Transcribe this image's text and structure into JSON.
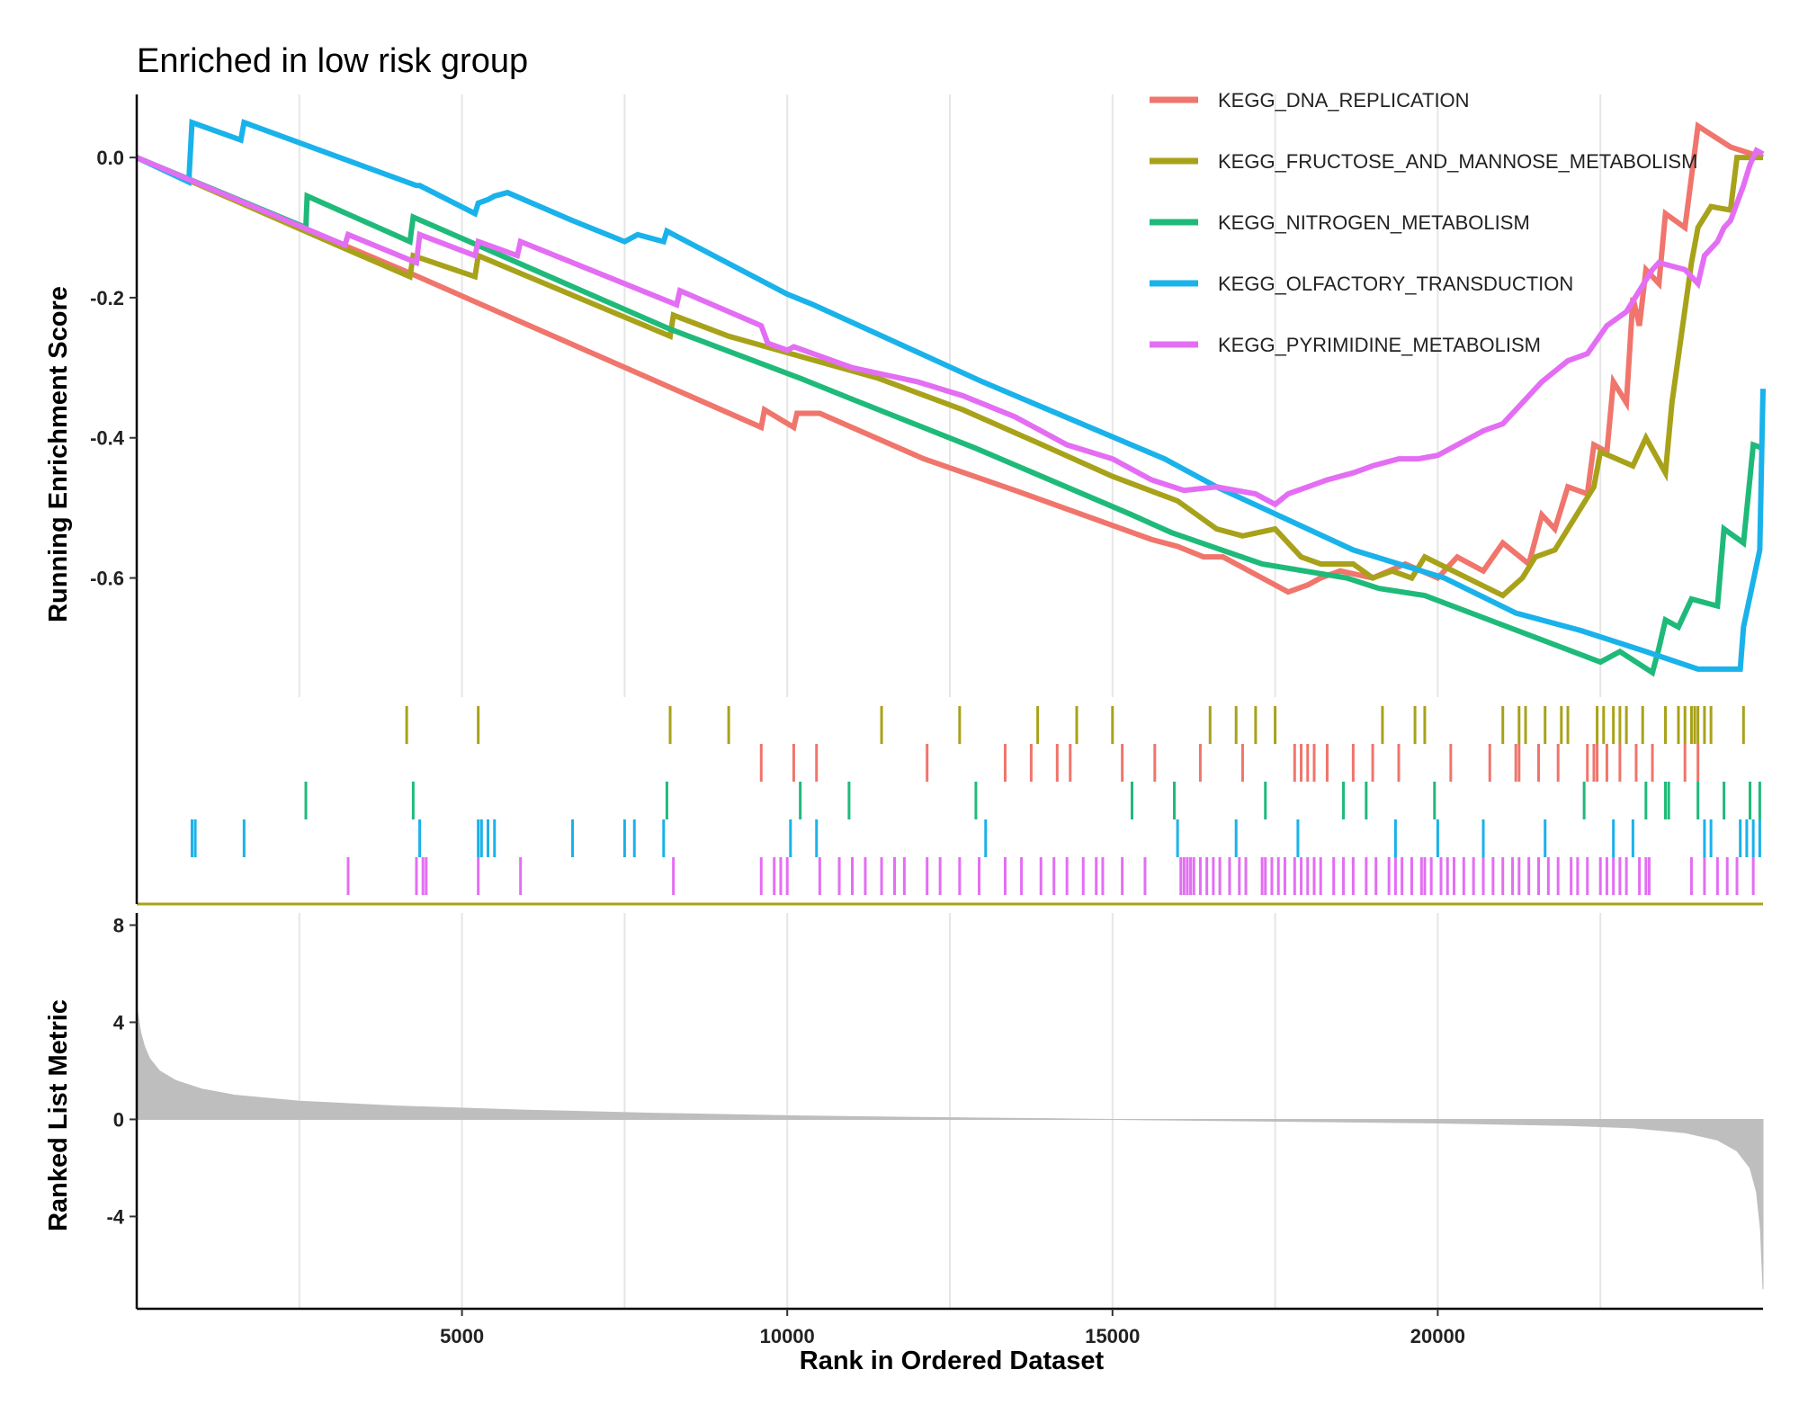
{
  "chart_data": {
    "type": "line",
    "title": "Enriched in low risk group",
    "xlabel": "Rank in Ordered Dataset",
    "x_ticks": [
      5000,
      10000,
      15000,
      20000
    ],
    "xlim": [
      0,
      25000
    ],
    "grid": true,
    "legend_position": "top-right",
    "panels": {
      "es": {
        "ylabel": "Running Enrichment Score",
        "ylim": [
          -0.77,
          0.09
        ],
        "y_ticks": [
          0.0,
          -0.2,
          -0.4,
          -0.6
        ],
        "y_tick_labels": [
          "0.0",
          "-0.2",
          "-0.4",
          "-0.6"
        ]
      },
      "metric": {
        "ylabel": "Ranked List Metric",
        "ylim": [
          -7.8,
          8.5
        ],
        "y_ticks": [
          8,
          4,
          0,
          -4
        ],
        "y_tick_labels": [
          "8",
          "4",
          "0",
          "-4"
        ],
        "fill_color": "#bebebe"
      }
    },
    "series": [
      {
        "name": "KEGG_DNA_REPLICATION",
        "color": "#f0756c",
        "points": [
          [
            0,
            0.0
          ],
          [
            4200,
            -0.165
          ],
          [
            9600,
            -0.385
          ],
          [
            9650,
            -0.36
          ],
          [
            10100,
            -0.385
          ],
          [
            10150,
            -0.365
          ],
          [
            10500,
            -0.365
          ],
          [
            12100,
            -0.43
          ],
          [
            13500,
            -0.475
          ],
          [
            15600,
            -0.545
          ],
          [
            16000,
            -0.555
          ],
          [
            16400,
            -0.57
          ],
          [
            16700,
            -0.57
          ],
          [
            17700,
            -0.62
          ],
          [
            18000,
            -0.61
          ],
          [
            18200,
            -0.6
          ],
          [
            18500,
            -0.59
          ],
          [
            19000,
            -0.6
          ],
          [
            19500,
            -0.58
          ],
          [
            20000,
            -0.6
          ],
          [
            20300,
            -0.57
          ],
          [
            20700,
            -0.59
          ],
          [
            21000,
            -0.55
          ],
          [
            21400,
            -0.58
          ],
          [
            21600,
            -0.51
          ],
          [
            21800,
            -0.53
          ],
          [
            22000,
            -0.47
          ],
          [
            22300,
            -0.48
          ],
          [
            22400,
            -0.41
          ],
          [
            22600,
            -0.42
          ],
          [
            22700,
            -0.32
          ],
          [
            22900,
            -0.35
          ],
          [
            23000,
            -0.2
          ],
          [
            23100,
            -0.24
          ],
          [
            23200,
            -0.16
          ],
          [
            23400,
            -0.18
          ],
          [
            23500,
            -0.08
          ],
          [
            23800,
            -0.1
          ],
          [
            24000,
            0.045
          ],
          [
            24500,
            0.015
          ],
          [
            25000,
            0.0
          ]
        ]
      },
      {
        "name": "KEGG_FRUCTOSE_AND_MANNOSE_METABOLISM",
        "color": "#a8a21a",
        "points": [
          [
            0,
            0.0
          ],
          [
            3200,
            -0.13
          ],
          [
            4200,
            -0.17
          ],
          [
            4250,
            -0.14
          ],
          [
            5200,
            -0.17
          ],
          [
            5250,
            -0.14
          ],
          [
            8200,
            -0.255
          ],
          [
            8250,
            -0.225
          ],
          [
            9100,
            -0.255
          ],
          [
            11400,
            -0.315
          ],
          [
            12700,
            -0.36
          ],
          [
            13800,
            -0.405
          ],
          [
            15000,
            -0.455
          ],
          [
            16000,
            -0.49
          ],
          [
            16600,
            -0.53
          ],
          [
            17000,
            -0.54
          ],
          [
            17500,
            -0.53
          ],
          [
            17900,
            -0.57
          ],
          [
            18200,
            -0.58
          ],
          [
            18700,
            -0.58
          ],
          [
            19000,
            -0.6
          ],
          [
            19300,
            -0.59
          ],
          [
            19600,
            -0.6
          ],
          [
            19800,
            -0.57
          ],
          [
            21000,
            -0.625
          ],
          [
            21300,
            -0.6
          ],
          [
            21500,
            -0.57
          ],
          [
            21800,
            -0.56
          ],
          [
            22000,
            -0.53
          ],
          [
            22200,
            -0.5
          ],
          [
            22400,
            -0.47
          ],
          [
            22500,
            -0.42
          ],
          [
            23000,
            -0.44
          ],
          [
            23200,
            -0.4
          ],
          [
            23500,
            -0.45
          ],
          [
            23600,
            -0.35
          ],
          [
            23750,
            -0.25
          ],
          [
            23900,
            -0.15
          ],
          [
            24000,
            -0.1
          ],
          [
            24200,
            -0.07
          ],
          [
            24500,
            -0.075
          ],
          [
            24600,
            0.0
          ],
          [
            25000,
            0.0
          ]
        ]
      },
      {
        "name": "KEGG_NITROGEN_METABOLISM",
        "color": "#1fba7a",
        "points": [
          [
            0,
            0.0
          ],
          [
            2600,
            -0.1
          ],
          [
            2620,
            -0.055
          ],
          [
            4200,
            -0.12
          ],
          [
            4250,
            -0.085
          ],
          [
            8200,
            -0.245
          ],
          [
            10200,
            -0.315
          ],
          [
            11000,
            -0.345
          ],
          [
            12900,
            -0.415
          ],
          [
            15300,
            -0.51
          ],
          [
            15900,
            -0.535
          ],
          [
            17300,
            -0.58
          ],
          [
            18600,
            -0.6
          ],
          [
            19100,
            -0.615
          ],
          [
            19800,
            -0.625
          ],
          [
            22500,
            -0.72
          ],
          [
            22800,
            -0.705
          ],
          [
            23300,
            -0.735
          ],
          [
            23400,
            -0.7
          ],
          [
            23500,
            -0.66
          ],
          [
            23700,
            -0.67
          ],
          [
            23900,
            -0.63
          ],
          [
            24300,
            -0.64
          ],
          [
            24400,
            -0.53
          ],
          [
            24700,
            -0.55
          ],
          [
            24850,
            -0.41
          ],
          [
            25000,
            -0.415
          ]
        ]
      },
      {
        "name": "KEGG_OLFACTORY_TRANSDUCTION",
        "color": "#1ab2ea",
        "points": [
          [
            0,
            0.0
          ],
          [
            800,
            -0.035
          ],
          [
            850,
            0.05
          ],
          [
            1600,
            0.025
          ],
          [
            1650,
            0.05
          ],
          [
            4300,
            -0.04
          ],
          [
            4350,
            -0.04
          ],
          [
            5200,
            -0.08
          ],
          [
            5250,
            -0.065
          ],
          [
            5400,
            -0.06
          ],
          [
            5500,
            -0.055
          ],
          [
            5700,
            -0.05
          ],
          [
            6700,
            -0.09
          ],
          [
            7500,
            -0.12
          ],
          [
            7700,
            -0.11
          ],
          [
            8100,
            -0.12
          ],
          [
            8150,
            -0.105
          ],
          [
            10000,
            -0.195
          ],
          [
            10400,
            -0.21
          ],
          [
            13000,
            -0.32
          ],
          [
            15800,
            -0.43
          ],
          [
            16600,
            -0.47
          ],
          [
            18700,
            -0.56
          ],
          [
            20100,
            -0.6
          ],
          [
            21200,
            -0.65
          ],
          [
            22200,
            -0.675
          ],
          [
            23200,
            -0.705
          ],
          [
            24000,
            -0.73
          ],
          [
            24200,
            -0.73
          ],
          [
            24650,
            -0.73
          ],
          [
            24700,
            -0.67
          ],
          [
            24950,
            -0.56
          ],
          [
            25000,
            -0.33
          ]
        ]
      },
      {
        "name": "KEGG_PYRIMIDINE_METABOLISM",
        "color": "#e36ef3",
        "points": [
          [
            0,
            0.0
          ],
          [
            3200,
            -0.125
          ],
          [
            3250,
            -0.11
          ],
          [
            4300,
            -0.15
          ],
          [
            4350,
            -0.11
          ],
          [
            5200,
            -0.14
          ],
          [
            5250,
            -0.12
          ],
          [
            5850,
            -0.14
          ],
          [
            5900,
            -0.12
          ],
          [
            8300,
            -0.21
          ],
          [
            8350,
            -0.19
          ],
          [
            9600,
            -0.24
          ],
          [
            9700,
            -0.265
          ],
          [
            10000,
            -0.275
          ],
          [
            10100,
            -0.27
          ],
          [
            11000,
            -0.3
          ],
          [
            11500,
            -0.31
          ],
          [
            12000,
            -0.32
          ],
          [
            12700,
            -0.34
          ],
          [
            13500,
            -0.37
          ],
          [
            14300,
            -0.41
          ],
          [
            15000,
            -0.43
          ],
          [
            15600,
            -0.46
          ],
          [
            16100,
            -0.475
          ],
          [
            16600,
            -0.47
          ],
          [
            17200,
            -0.48
          ],
          [
            17500,
            -0.495
          ],
          [
            17700,
            -0.48
          ],
          [
            18000,
            -0.47
          ],
          [
            18300,
            -0.46
          ],
          [
            18700,
            -0.45
          ],
          [
            19000,
            -0.44
          ],
          [
            19400,
            -0.43
          ],
          [
            19700,
            -0.43
          ],
          [
            20000,
            -0.425
          ],
          [
            20300,
            -0.41
          ],
          [
            20700,
            -0.39
          ],
          [
            21000,
            -0.38
          ],
          [
            21300,
            -0.35
          ],
          [
            21600,
            -0.32
          ],
          [
            22000,
            -0.29
          ],
          [
            22300,
            -0.28
          ],
          [
            22600,
            -0.24
          ],
          [
            22900,
            -0.22
          ],
          [
            23100,
            -0.19
          ],
          [
            23300,
            -0.16
          ],
          [
            23400,
            -0.15
          ],
          [
            23800,
            -0.16
          ],
          [
            24000,
            -0.18
          ],
          [
            24100,
            -0.14
          ],
          [
            24300,
            -0.12
          ],
          [
            24400,
            -0.1
          ],
          [
            24500,
            -0.09
          ],
          [
            24700,
            -0.04
          ],
          [
            24800,
            -0.01
          ],
          [
            24900,
            0.01
          ],
          [
            25000,
            0.005
          ]
        ]
      }
    ],
    "hits": [
      {
        "series": "KEGG_FRUCTOSE_AND_MANNOSE_METABOLISM",
        "row": 0,
        "positions": [
          4150,
          5250,
          8200,
          9100,
          11450,
          12650,
          13850,
          14450,
          15000,
          16500,
          16900,
          17200,
          17500,
          19150,
          19650,
          19800,
          21000,
          21250,
          21350,
          21650,
          21900,
          22000,
          22450,
          22550,
          22700,
          22800,
          22900,
          23150,
          23500,
          23700,
          23800,
          23900,
          23950,
          24000,
          24100,
          24200,
          24700
        ]
      },
      {
        "series": "KEGG_DNA_REPLICATION",
        "row": 1,
        "positions": [
          9600,
          10100,
          10450,
          12150,
          13350,
          13750,
          14150,
          14350,
          15150,
          15650,
          16350,
          17000,
          17800,
          17900,
          18000,
          18100,
          18300,
          18700,
          19000,
          19400,
          20200,
          20800,
          21200,
          21250,
          21550,
          21850,
          22300,
          22400,
          22450,
          22600,
          22800,
          23050,
          23300,
          23800,
          24000
        ]
      },
      {
        "series": "KEGG_NITROGEN_METABOLISM",
        "row": 2,
        "positions": [
          2600,
          4250,
          8150,
          10200,
          10950,
          12900,
          15300,
          15950,
          17350,
          18550,
          18900,
          19950,
          22250,
          23200,
          23500,
          23550,
          24000,
          24400,
          24800,
          24950
        ]
      },
      {
        "series": "KEGG_OLFACTORY_TRANSDUCTION",
        "row": 3,
        "positions": [
          850,
          900,
          1650,
          4350,
          5250,
          5300,
          5400,
          5500,
          6700,
          7500,
          7650,
          8100,
          10050,
          10450,
          13050,
          16000,
          16900,
          17850,
          19350,
          20000,
          20700,
          21650,
          22700,
          23000,
          24100,
          24200,
          24650,
          24750,
          24850,
          24950
        ]
      },
      {
        "series": "KEGG_PYRIMIDINE_METABOLISM",
        "row": 4,
        "positions": [
          3250,
          4300,
          4400,
          4450,
          5250,
          5900,
          8250,
          9600,
          9800,
          9900,
          10000,
          10500,
          10800,
          11000,
          11200,
          11450,
          11650,
          11800,
          12150,
          12350,
          12650,
          12950,
          13350,
          13600,
          13900,
          14100,
          14300,
          14550,
          14750,
          14850,
          15150,
          15500,
          16050,
          16100,
          16150,
          16200,
          16250,
          16350,
          16450,
          16550,
          16650,
          16800,
          16950,
          17050,
          17300,
          17350,
          17450,
          17550,
          17650,
          17800,
          17900,
          18000,
          18100,
          18200,
          18400,
          18550,
          18700,
          18900,
          19050,
          19250,
          19350,
          19450,
          19600,
          19750,
          19800,
          19900,
          20050,
          20150,
          20250,
          20400,
          20550,
          20700,
          20850,
          21000,
          21150,
          21250,
          21400,
          21550,
          21700,
          21850,
          22050,
          22150,
          22300,
          22500,
          22600,
          22700,
          22800,
          22900,
          23100,
          23200,
          23250,
          23900,
          24100,
          24300,
          24450,
          24600,
          24850
        ]
      }
    ],
    "ranked_metric": [
      [
        0,
        4.6
      ],
      [
        25,
        4.2
      ],
      [
        60,
        3.6
      ],
      [
        120,
        3.0
      ],
      [
        200,
        2.5
      ],
      [
        350,
        2.0
      ],
      [
        600,
        1.6
      ],
      [
        1000,
        1.25
      ],
      [
        1500,
        1.0
      ],
      [
        2500,
        0.75
      ],
      [
        4000,
        0.55
      ],
      [
        6000,
        0.38
      ],
      [
        8000,
        0.25
      ],
      [
        10000,
        0.15
      ],
      [
        12000,
        0.08
      ],
      [
        14000,
        0.03
      ],
      [
        15000,
        0.0
      ],
      [
        16000,
        -0.03
      ],
      [
        18000,
        -0.09
      ],
      [
        20000,
        -0.15
      ],
      [
        22000,
        -0.25
      ],
      [
        23000,
        -0.35
      ],
      [
        23800,
        -0.55
      ],
      [
        24300,
        -0.85
      ],
      [
        24600,
        -1.3
      ],
      [
        24800,
        -2.0
      ],
      [
        24900,
        -3.0
      ],
      [
        24960,
        -4.5
      ],
      [
        25000,
        -7.0
      ]
    ]
  }
}
